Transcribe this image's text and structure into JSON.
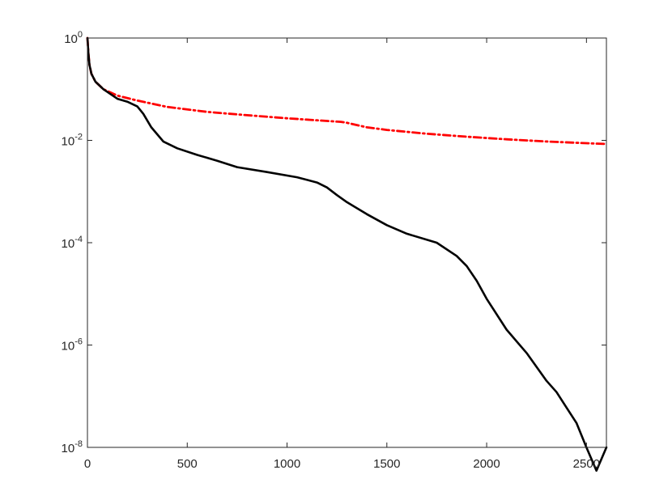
{
  "chart_data": {
    "type": "line",
    "title": "",
    "xlabel": "",
    "ylabel": "",
    "xlim": [
      0,
      2600
    ],
    "ylim": [
      1e-08,
      1
    ],
    "y_scale": "log",
    "grid": false,
    "legend": "none",
    "x_ticks": [
      {
        "value": 0,
        "label": "0"
      },
      {
        "value": 500,
        "label": "500"
      },
      {
        "value": 1000,
        "label": "1000"
      },
      {
        "value": 1500,
        "label": "1500"
      },
      {
        "value": 2000,
        "label": "2000"
      },
      {
        "value": 2500,
        "label": "2500"
      }
    ],
    "y_ticks": [
      {
        "value": 1e-08,
        "base": "10",
        "exponent": "-8"
      },
      {
        "value": 1e-06,
        "base": "10",
        "exponent": "-6"
      },
      {
        "value": 0.0001,
        "base": "10",
        "exponent": "-4"
      },
      {
        "value": 0.01,
        "base": "10",
        "exponent": "-2"
      },
      {
        "value": 1,
        "base": "10",
        "exponent": "0"
      }
    ],
    "series": [
      {
        "color": "#ff0000",
        "line_style": "dash-dot",
        "x": [
          0,
          5,
          10,
          20,
          40,
          80,
          150,
          250,
          400,
          600,
          800,
          1000,
          1200,
          1270,
          1300,
          1400,
          1500,
          1700,
          1900,
          2100,
          2300,
          2500,
          2600
        ],
        "y": [
          1.0,
          0.5,
          0.3,
          0.2,
          0.14,
          0.1,
          0.075,
          0.06,
          0.045,
          0.036,
          0.031,
          0.027,
          0.024,
          0.023,
          0.022,
          0.018,
          0.016,
          0.0135,
          0.0118,
          0.0105,
          0.0095,
          0.0088,
          0.0085
        ]
      },
      {
        "color": "#000000",
        "line_style": "solid",
        "x": [
          0,
          5,
          10,
          20,
          40,
          80,
          150,
          200,
          250,
          280,
          320,
          380,
          450,
          550,
          650,
          750,
          900,
          1050,
          1150,
          1200,
          1250,
          1300,
          1400,
          1500,
          1600,
          1750,
          1850,
          1900,
          1950,
          2000,
          2100,
          2200,
          2300,
          2350,
          2400,
          2450,
          2500,
          2550,
          2600
        ],
        "y": [
          1.0,
          0.5,
          0.3,
          0.2,
          0.14,
          0.1,
          0.065,
          0.057,
          0.046,
          0.033,
          0.018,
          0.0095,
          0.007,
          0.0052,
          0.004,
          0.003,
          0.0024,
          0.0019,
          0.0015,
          0.0012,
          0.00085,
          0.00062,
          0.00036,
          0.00022,
          0.00015,
          0.0001,
          5.5e-05,
          3.5e-05,
          1.8e-05,
          8e-06,
          2e-06,
          7e-07,
          2e-07,
          1.2e-07,
          6e-08,
          3e-08,
          1e-08,
          3.5e-09,
          1e-08
        ]
      }
    ]
  }
}
